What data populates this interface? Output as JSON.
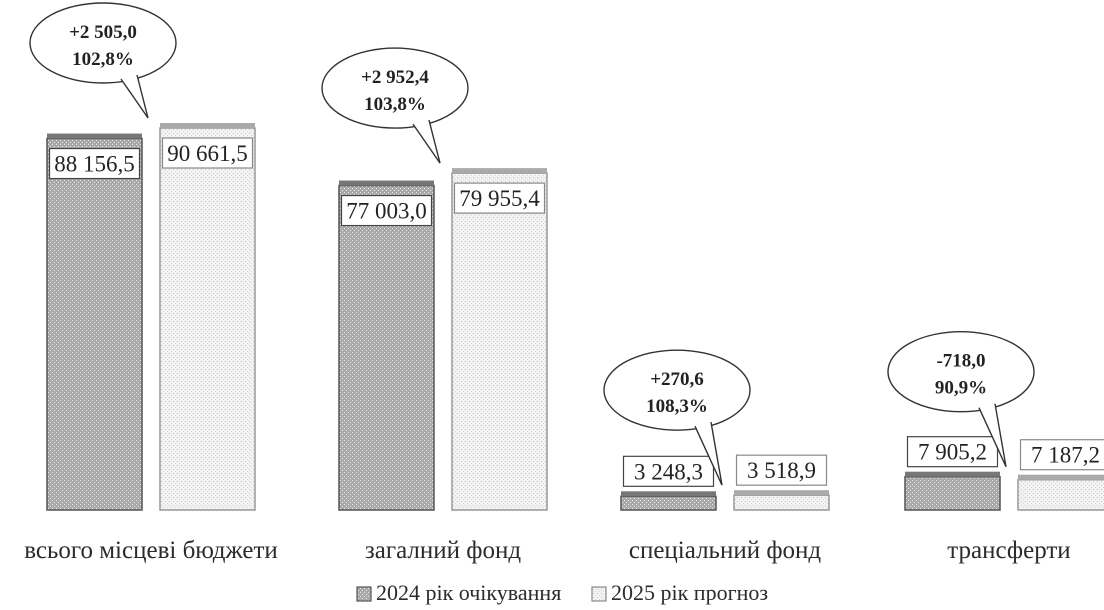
{
  "chart_data": {
    "type": "bar",
    "categories": [
      "всього місцеві бюджети",
      "загалний фонд",
      "спеціальний фонд",
      "трансферти"
    ],
    "series": [
      {
        "name": "2024 рік очікування",
        "values": [
          88156.5,
          77003.0,
          3248.3,
          7905.2
        ],
        "labels": [
          "88 156,5",
          "77 003,0",
          "3 248,3",
          "7 905,2"
        ]
      },
      {
        "name": "2025 рік прогноз",
        "values": [
          90661.5,
          79955.4,
          3518.9,
          7187.2
        ],
        "labels": [
          "90 661,5",
          "79 955,4",
          "3 518,9",
          "7 187,2"
        ]
      }
    ],
    "annotations": [
      {
        "diff": "+2 505,0",
        "pct": "102,8%"
      },
      {
        "diff": "+2 952,4",
        "pct": "103,8%"
      },
      {
        "diff": "+270,6",
        "pct": "108,3%"
      },
      {
        "diff": "-718,0",
        "pct": "90,9%"
      }
    ],
    "colors": {
      "series_2024": "#b9b9b9",
      "series_2025": "#ececec",
      "border": "#555555"
    },
    "legend_position": "bottom",
    "grid": false
  }
}
